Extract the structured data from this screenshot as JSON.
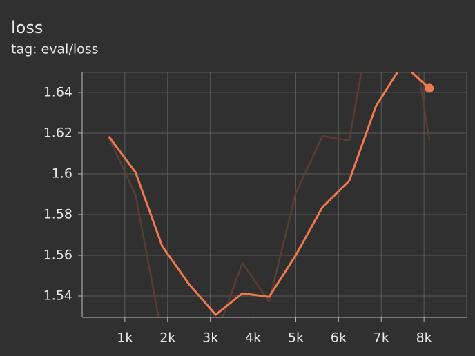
{
  "chart_data": {
    "type": "line",
    "title": "loss",
    "subtitle": "tag: eval/loss",
    "x": [
      625,
      1250,
      1875,
      2500,
      3125,
      3750,
      4375,
      5000,
      5625,
      6250,
      6875,
      7500,
      8125
    ],
    "series": [
      {
        "color": "#5c3d33",
        "values": [
          1.618,
          1.5895,
          1.52,
          1.505,
          1.52,
          1.5563,
          1.5373,
          1.5905,
          1.6186,
          1.6163,
          1.69,
          1.7,
          1.6166
        ]
      },
      {
        "color": "#f07a4f",
        "values": [
          1.6183,
          1.6007,
          1.5644,
          1.5458,
          1.5308,
          1.5413,
          1.5396,
          1.56,
          1.5837,
          1.5966,
          1.6332,
          1.654,
          1.642
        ]
      }
    ],
    "xlim": [
      0,
      9000
    ],
    "xticks": [
      {
        "value": 1000,
        "label": "1k"
      },
      {
        "value": 2000,
        "label": "2k"
      },
      {
        "value": 3000,
        "label": "3k"
      },
      {
        "value": 4000,
        "label": "4k"
      },
      {
        "value": 5000,
        "label": "5k"
      },
      {
        "value": 6000,
        "label": "6k"
      },
      {
        "value": 7000,
        "label": "7k"
      },
      {
        "value": 8000,
        "label": "8k"
      }
    ],
    "ylim": [
      1.5295,
      1.6498
    ],
    "yticks": [
      1.54,
      1.56,
      1.58,
      1.6,
      1.62,
      1.64
    ],
    "grid": true
  }
}
